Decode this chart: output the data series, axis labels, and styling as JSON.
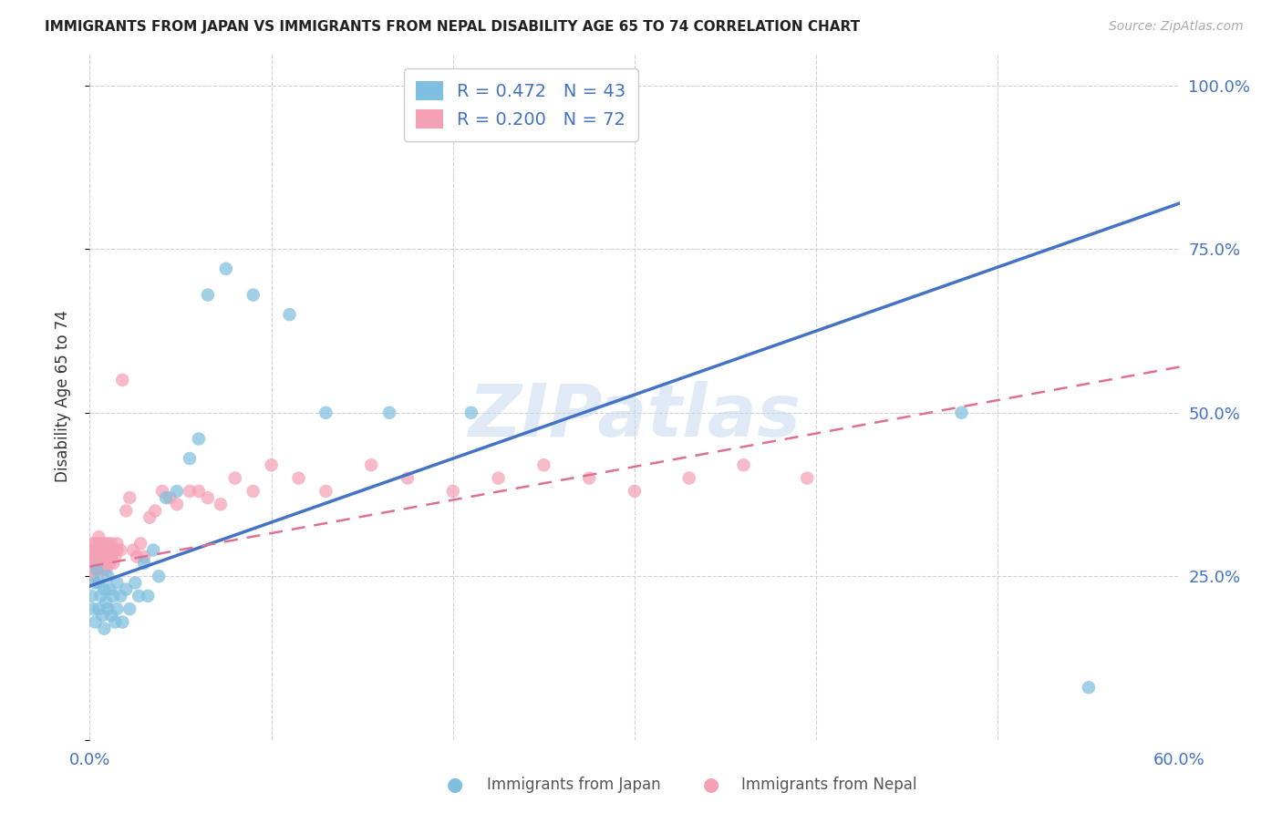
{
  "title": "IMMIGRANTS FROM JAPAN VS IMMIGRANTS FROM NEPAL DISABILITY AGE 65 TO 74 CORRELATION CHART",
  "source": "Source: ZipAtlas.com",
  "ylabel": "Disability Age 65 to 74",
  "xlim": [
    0.0,
    0.6
  ],
  "ylim": [
    0.0,
    1.05
  ],
  "xtick_positions": [
    0.0,
    0.1,
    0.2,
    0.3,
    0.4,
    0.5,
    0.6
  ],
  "xticklabels": [
    "0.0%",
    "",
    "",
    "",
    "",
    "",
    "60.0%"
  ],
  "ytick_positions": [
    0.0,
    0.25,
    0.5,
    0.75,
    1.0
  ],
  "yticklabels_right": [
    "",
    "25.0%",
    "50.0%",
    "75.0%",
    "100.0%"
  ],
  "watermark": "ZIPatlas",
  "legend_japan_r": "R = 0.472",
  "legend_japan_n": "N = 43",
  "legend_nepal_r": "R = 0.200",
  "legend_nepal_n": "N = 72",
  "color_japan": "#7fbfdf",
  "color_nepal": "#f4a0b5",
  "color_japan_line": "#4472c4",
  "color_nepal_line": "#e07090",
  "color_axis_right": "#4472c4",
  "color_title": "#222222",
  "background_color": "#ffffff",
  "japan_line_x0": 0.0,
  "japan_line_y0": 0.235,
  "japan_line_x1": 0.6,
  "japan_line_y1": 0.82,
  "nepal_line_x0": 0.0,
  "nepal_line_y0": 0.265,
  "nepal_line_x1": 0.6,
  "nepal_line_y1": 0.57,
  "japan_x": [
    0.001,
    0.002,
    0.003,
    0.003,
    0.004,
    0.005,
    0.005,
    0.006,
    0.007,
    0.008,
    0.008,
    0.009,
    0.01,
    0.01,
    0.011,
    0.012,
    0.013,
    0.014,
    0.015,
    0.015,
    0.017,
    0.018,
    0.02,
    0.022,
    0.025,
    0.027,
    0.03,
    0.032,
    0.035,
    0.038,
    0.042,
    0.048,
    0.055,
    0.06,
    0.065,
    0.075,
    0.09,
    0.11,
    0.13,
    0.165,
    0.21,
    0.48,
    0.55
  ],
  "japan_y": [
    0.22,
    0.2,
    0.24,
    0.18,
    0.26,
    0.2,
    0.24,
    0.22,
    0.19,
    0.23,
    0.17,
    0.21,
    0.25,
    0.2,
    0.23,
    0.19,
    0.22,
    0.18,
    0.24,
    0.2,
    0.22,
    0.18,
    0.23,
    0.2,
    0.24,
    0.22,
    0.27,
    0.22,
    0.29,
    0.25,
    0.37,
    0.38,
    0.43,
    0.46,
    0.68,
    0.72,
    0.68,
    0.65,
    0.5,
    0.5,
    0.5,
    0.5,
    0.08
  ],
  "nepal_x": [
    0.001,
    0.001,
    0.001,
    0.002,
    0.002,
    0.002,
    0.003,
    0.003,
    0.003,
    0.004,
    0.004,
    0.004,
    0.005,
    0.005,
    0.005,
    0.005,
    0.006,
    0.006,
    0.006,
    0.007,
    0.007,
    0.007,
    0.008,
    0.008,
    0.008,
    0.009,
    0.009,
    0.009,
    0.01,
    0.01,
    0.01,
    0.011,
    0.011,
    0.012,
    0.012,
    0.013,
    0.013,
    0.014,
    0.015,
    0.015,
    0.017,
    0.018,
    0.02,
    0.022,
    0.024,
    0.026,
    0.028,
    0.03,
    0.033,
    0.036,
    0.04,
    0.044,
    0.048,
    0.055,
    0.06,
    0.065,
    0.072,
    0.08,
    0.09,
    0.1,
    0.115,
    0.13,
    0.155,
    0.175,
    0.2,
    0.225,
    0.25,
    0.275,
    0.3,
    0.33,
    0.36,
    0.395
  ],
  "nepal_y": [
    0.28,
    0.3,
    0.26,
    0.29,
    0.27,
    0.25,
    0.3,
    0.28,
    0.27,
    0.29,
    0.27,
    0.26,
    0.31,
    0.29,
    0.28,
    0.26,
    0.3,
    0.28,
    0.27,
    0.29,
    0.28,
    0.26,
    0.3,
    0.28,
    0.27,
    0.29,
    0.28,
    0.26,
    0.3,
    0.29,
    0.28,
    0.29,
    0.27,
    0.3,
    0.28,
    0.29,
    0.27,
    0.28,
    0.3,
    0.29,
    0.29,
    0.55,
    0.35,
    0.37,
    0.29,
    0.28,
    0.3,
    0.28,
    0.34,
    0.35,
    0.38,
    0.37,
    0.36,
    0.38,
    0.38,
    0.37,
    0.36,
    0.4,
    0.38,
    0.42,
    0.4,
    0.38,
    0.42,
    0.4,
    0.38,
    0.4,
    0.42,
    0.4,
    0.38,
    0.4,
    0.42,
    0.4
  ]
}
